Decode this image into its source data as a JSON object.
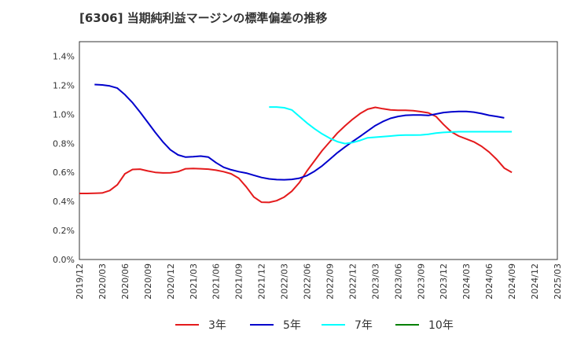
{
  "title": "[6306]  当期純利益マージンの標準偏差の推移",
  "chart_data": {
    "type": "line",
    "title": "[6306]  当期純利益マージンの標準偏差の推移",
    "xlabel": "",
    "ylabel": "",
    "x_ticks": [
      "2019/12",
      "2020/03",
      "2020/06",
      "2020/09",
      "2020/12",
      "2021/03",
      "2021/06",
      "2021/09",
      "2021/12",
      "2022/03",
      "2022/06",
      "2022/09",
      "2022/12",
      "2023/03",
      "2023/06",
      "2023/09",
      "2023/12",
      "2024/03",
      "2024/06",
      "2024/09",
      "2024/12",
      "2025/03"
    ],
    "y_ticks": [
      "0.0%",
      "0.2%",
      "0.4%",
      "0.6%",
      "0.8%",
      "1.0%",
      "1.2%",
      "1.4%"
    ],
    "ylim": [
      0,
      1.5
    ],
    "y_unit": "%",
    "grid": true,
    "legend_position": "bottom",
    "series": [
      {
        "name": "3年",
        "color": "#e41a1c",
        "start_index": 0,
        "values": [
          0.455,
          0.455,
          0.456,
          0.458,
          0.475,
          0.515,
          0.59,
          0.62,
          0.622,
          0.61,
          0.6,
          0.596,
          0.597,
          0.605,
          0.625,
          0.627,
          0.625,
          0.622,
          0.615,
          0.605,
          0.59,
          0.56,
          0.5,
          0.43,
          0.395,
          0.393,
          0.405,
          0.43,
          0.47,
          0.53,
          0.61,
          0.68,
          0.75,
          0.81,
          0.87,
          0.92,
          0.965,
          1.005,
          1.035,
          1.048,
          1.038,
          1.03,
          1.028,
          1.028,
          1.025,
          1.018,
          1.01,
          0.985,
          0.93,
          0.88,
          0.85,
          0.83,
          0.81,
          0.78,
          0.74,
          0.69,
          0.63,
          0.6
        ]
      },
      {
        "name": "5年",
        "color": "#0000cc",
        "start_index": 2,
        "values": [
          1.205,
          1.202,
          1.195,
          1.18,
          1.135,
          1.08,
          1.015,
          0.945,
          0.875,
          0.81,
          0.755,
          0.72,
          0.705,
          0.708,
          0.712,
          0.705,
          0.667,
          0.635,
          0.618,
          0.605,
          0.595,
          0.58,
          0.565,
          0.555,
          0.55,
          0.549,
          0.552,
          0.56,
          0.578,
          0.608,
          0.645,
          0.69,
          0.735,
          0.775,
          0.812,
          0.848,
          0.885,
          0.922,
          0.95,
          0.972,
          0.985,
          0.993,
          0.995,
          0.995,
          0.992,
          1.002,
          1.012,
          1.017,
          1.019,
          1.019,
          1.015,
          1.005,
          0.993,
          0.985,
          0.975
        ]
      },
      {
        "name": "7年",
        "color": "#00ffff",
        "start_index": 25,
        "values": [
          1.05,
          1.05,
          1.045,
          1.03,
          0.985,
          0.94,
          0.9,
          0.865,
          0.835,
          0.812,
          0.798,
          0.805,
          0.82,
          0.838,
          0.842,
          0.846,
          0.85,
          0.855,
          0.857,
          0.857,
          0.858,
          0.862,
          0.87,
          0.875,
          0.878,
          0.88,
          0.88,
          0.88,
          0.88,
          0.88,
          0.88,
          0.88,
          0.88
        ]
      },
      {
        "name": "10年",
        "color": "#008000",
        "start_index": 0,
        "values": []
      }
    ]
  }
}
